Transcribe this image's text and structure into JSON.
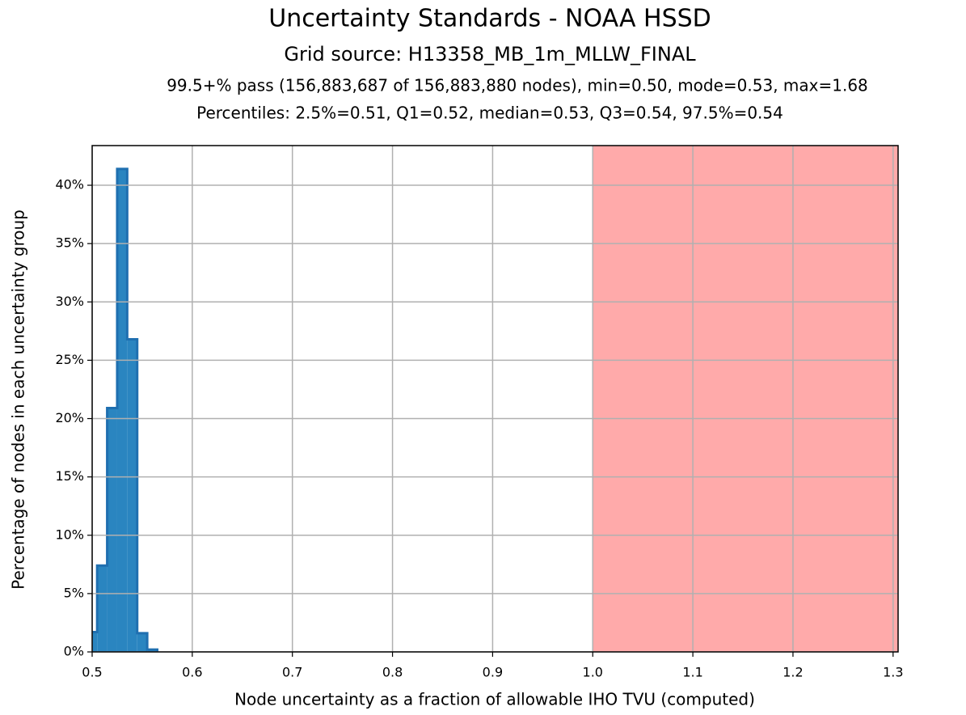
{
  "chart_data": {
    "type": "histogram",
    "title": "Uncertainty Standards - NOAA HSSD",
    "subtitle": "Grid source: H13358_MB_1m_MLLW_FINAL",
    "summary": "99.5+% pass (156,883,687 of 156,883,880 nodes), min=0.50, mode=0.53, max=1.68",
    "percentiles": "Percentiles: 2.5%=0.51, Q1=0.52, median=0.53, Q3=0.54, 97.5%=0.54",
    "x_label": "Node uncertainty as a fraction of allowable IHO TVU (computed)",
    "y_label": "Percentage of nodes in each uncertainty group",
    "bins": [
      0.495,
      0.505,
      0.515,
      0.525,
      0.535,
      0.545,
      0.555,
      0.565
    ],
    "values": [
      1.7,
      7.4,
      20.9,
      41.4,
      26.8,
      1.6,
      0.2
    ],
    "color": "#2a85c0",
    "edge_color": "#1f6fb0",
    "fail_threshold": 1.0,
    "fail_color": "#ffaaaa",
    "xlim": [
      0.5,
      1.305
    ],
    "ylim": [
      0,
      43.4
    ],
    "xticks": [
      0.5,
      0.6,
      0.7,
      0.8,
      0.9,
      {
        "value": 1,
        "label": "1.0"
      },
      1.1,
      1.2,
      1.3
    ],
    "yticks": [
      {
        "value": 0,
        "label": "0%"
      },
      {
        "value": 5,
        "label": "5%"
      },
      {
        "value": 10,
        "label": "10%"
      },
      {
        "value": 15,
        "label": "15%"
      },
      {
        "value": 20,
        "label": "20%"
      },
      {
        "value": 25,
        "label": "25%"
      },
      {
        "value": 30,
        "label": "30%"
      },
      {
        "value": 35,
        "label": "35%"
      },
      {
        "value": 40,
        "label": "40%"
      }
    ],
    "grid": true
  }
}
